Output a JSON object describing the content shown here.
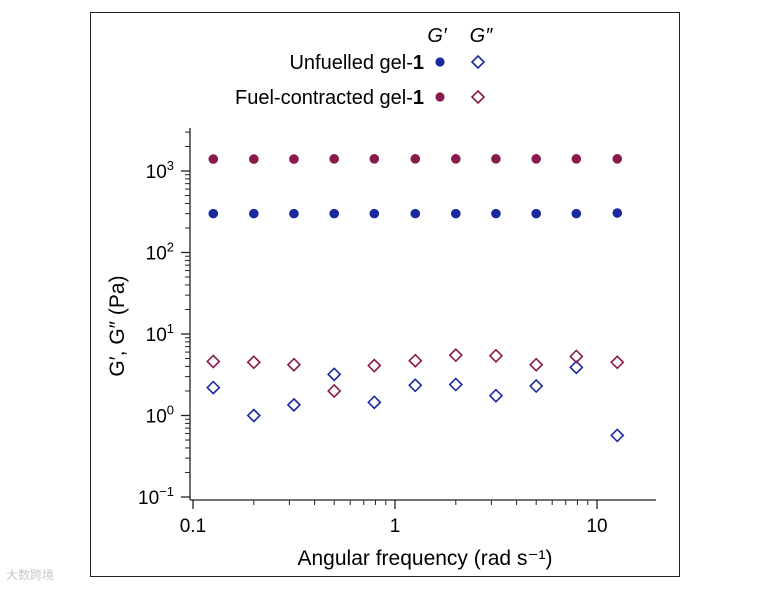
{
  "legend": {
    "header_gprime": "G′",
    "header_gdoubleprime": "G″",
    "unfuelled_prefix": "Unfuelled gel-",
    "unfuelled_bold": "1",
    "fuel_prefix": "Fuel-contracted gel-",
    "fuel_bold": "1"
  },
  "colors": {
    "unfuelled": "#1a2a9e",
    "fuel_contracted": "#8a1a4c",
    "axis": "#222222"
  },
  "watermark": "大数跨境",
  "chart_data": {
    "type": "scatter",
    "x_scale": "log",
    "y_scale": "log",
    "xlabel": "Angular frequency (rad s⁻¹)",
    "ylabel": "G′, G″ (Pa)",
    "xlim": [
      0.08,
      20
    ],
    "ylim": [
      0.1,
      5000
    ],
    "x_ticks": [
      {
        "value": 0.1,
        "label": "0.1"
      },
      {
        "value": 1,
        "label": "1"
      },
      {
        "value": 10,
        "label": "10"
      }
    ],
    "y_ticks": [
      {
        "value": 0.1,
        "base": "10",
        "exp": "−1"
      },
      {
        "value": 1,
        "base": "10",
        "exp": "0"
      },
      {
        "value": 10,
        "base": "10",
        "exp": "1"
      },
      {
        "value": 100,
        "base": "10",
        "exp": "2"
      },
      {
        "value": 1000,
        "base": "10",
        "exp": "3"
      }
    ],
    "grid": false,
    "legend_position": "top",
    "x": [
      0.126,
      0.2,
      0.316,
      0.5,
      0.79,
      1.26,
      2.0,
      3.16,
      5.0,
      7.9,
      12.6
    ],
    "series": [
      {
        "name": "Unfuelled gel-1 G′",
        "marker": "filled-circle",
        "color_key": "unfuelled",
        "values": [
          300,
          300,
          300,
          300,
          300,
          300,
          300,
          300,
          300,
          300,
          305
        ]
      },
      {
        "name": "Unfuelled gel-1 G″",
        "marker": "open-diamond",
        "color_key": "unfuelled",
        "values": [
          2.2,
          1.0,
          1.35,
          3.2,
          1.45,
          2.35,
          2.4,
          1.75,
          2.3,
          3.9,
          0.57
        ]
      },
      {
        "name": "Fuel-contracted gel-1 G′",
        "marker": "filled-circle",
        "color_key": "fuel_contracted",
        "values": [
          1400,
          1400,
          1400,
          1410,
          1410,
          1410,
          1410,
          1410,
          1410,
          1410,
          1410
        ]
      },
      {
        "name": "Fuel-contracted gel-1 G″",
        "marker": "open-diamond",
        "color_key": "fuel_contracted",
        "values": [
          4.6,
          4.5,
          4.2,
          2.0,
          4.1,
          4.7,
          5.5,
          5.4,
          4.2,
          5.3,
          4.5
        ]
      }
    ]
  }
}
